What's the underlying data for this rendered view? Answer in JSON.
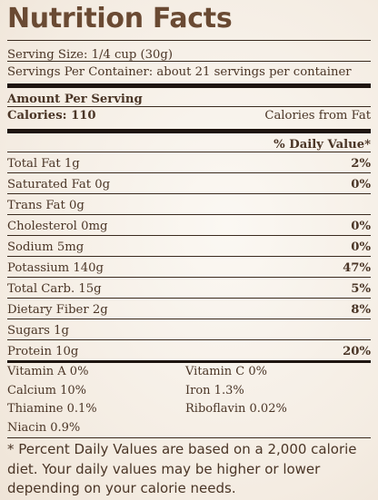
{
  "label": {
    "title": "Nutrition Facts",
    "serving_size": "Serving Size: 1/4 cup (30g)",
    "servings_per_container": "Servings Per Container: about 21 servings per container",
    "amount_per_serving": "Amount Per Serving",
    "calories": "Calories: 110",
    "calories_from_fat": "Calories from Fat",
    "daily_value_header": "% Daily Value*",
    "nutrients": [
      {
        "name": "Total Fat 1g",
        "dv": "2%"
      },
      {
        "name": "Saturated Fat 0g",
        "dv": "0%"
      },
      {
        "name": "Trans Fat 0g",
        "dv": ""
      },
      {
        "name": "Cholesterol 0mg",
        "dv": "0%"
      },
      {
        "name": "Sodium 5mg",
        "dv": "0%"
      },
      {
        "name": "Potassium 140g",
        "dv": "47%"
      },
      {
        "name": "Total Carb. 15g",
        "dv": "5%"
      },
      {
        "name": "Dietary Fiber 2g",
        "dv": "8%"
      },
      {
        "name": "Sugars 1g",
        "dv": ""
      },
      {
        "name": "Protein 10g",
        "dv": "20%"
      }
    ],
    "vitamins": [
      "Vitamin A 0%",
      "Vitamin C 0%",
      "Calcium 10%",
      "Iron 1.3%",
      "Thiamine 0.1%",
      "Riboflavin 0.02%",
      "Niacin 0.9%"
    ],
    "footnote": "* Percent Daily Values are based on a 2,000 calorie diet. Your daily values may be higher or lower depending on your calorie needs."
  }
}
